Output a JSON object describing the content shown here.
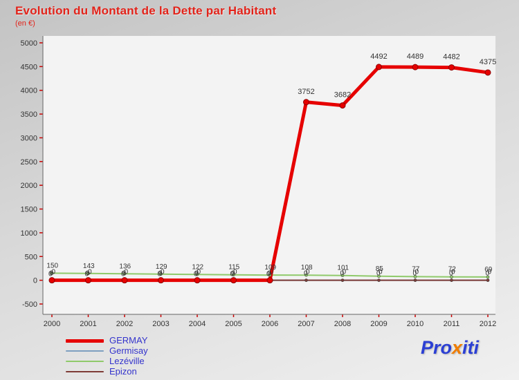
{
  "colors": {
    "title": "#e2231a",
    "axis_tick": "#cc0000",
    "axis_line": "#666666",
    "label_text": "#333333",
    "legend_text": "#3333cc",
    "plot_bg": "#f3f3f3"
  },
  "logo": {
    "parts": [
      {
        "text": "Pro",
        "color": "#2b3fd4"
      },
      {
        "text": "x",
        "color": "#f07d00"
      },
      {
        "text": "iti",
        "color": "#2b3fd4"
      }
    ]
  },
  "chart_data": {
    "type": "line",
    "title": "Evolution du Montant de la Dette par Habitant",
    "subtitle": "(en €)",
    "x": [
      2000,
      2001,
      2002,
      2003,
      2004,
      2005,
      2006,
      2007,
      2008,
      2009,
      2010,
      2011,
      2012
    ],
    "ylim": [
      -500,
      5000
    ],
    "yticks": [
      -500,
      0,
      500,
      1000,
      1500,
      2000,
      2500,
      3000,
      3500,
      4000,
      4500,
      5000
    ],
    "grid": false,
    "legend_position": "bottom-left",
    "big_label_threshold": 500,
    "series": [
      {
        "name": "GERMAY",
        "color": "#e60000",
        "line_width": 5,
        "values": [
          0,
          0,
          0,
          0,
          0,
          0,
          0,
          3752,
          3682,
          4492,
          4489,
          4482,
          4375
        ]
      },
      {
        "name": "Germisay",
        "color": "#7d9fc0",
        "line_width": 2,
        "values": [
          0,
          0,
          0,
          0,
          0,
          0,
          0,
          0,
          0,
          0,
          0,
          0,
          0
        ]
      },
      {
        "name": "Lezéville",
        "color": "#8fca6a",
        "line_width": 2,
        "values": [
          150,
          143,
          136,
          129,
          122,
          115,
          109,
          108,
          101,
          85,
          77,
          72,
          69
        ]
      },
      {
        "name": "Epizon",
        "color": "#7e3b36",
        "line_width": 2,
        "values": [
          0,
          0,
          0,
          0,
          0,
          0,
          0,
          0,
          0,
          0,
          0,
          0,
          0
        ]
      }
    ]
  }
}
